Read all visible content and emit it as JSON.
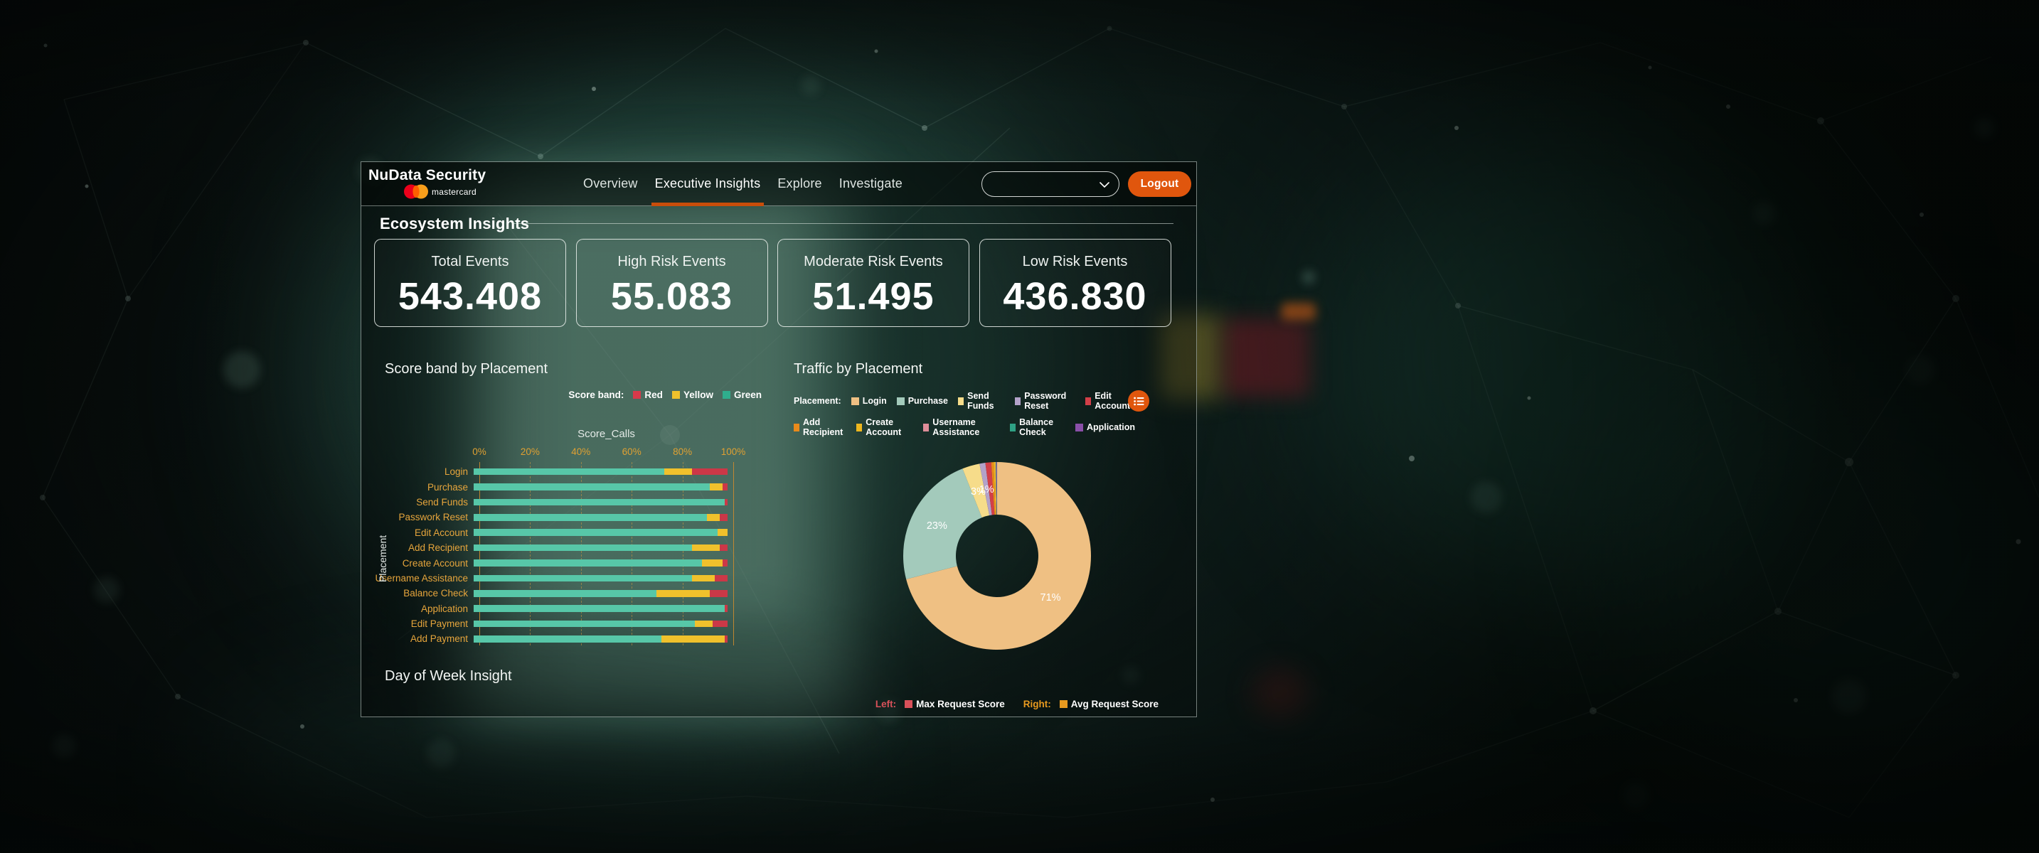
{
  "header": {
    "brand": {
      "title": "NuData Security",
      "logo_text": "mastercard"
    },
    "nav_items": [
      {
        "label": "Overview",
        "active": false
      },
      {
        "label": "Executive Insights",
        "active": true
      },
      {
        "label": "Explore",
        "active": false
      },
      {
        "label": "Investigate",
        "active": false
      }
    ],
    "account_dropdown_value": "",
    "logout_label": "Logout"
  },
  "page": {
    "section_title": "Ecosystem Insights"
  },
  "kpis": [
    {
      "label": "Total Events",
      "value": "543.408"
    },
    {
      "label": "High Risk Events",
      "value": "55.083"
    },
    {
      "label": "Moderate Risk Events",
      "value": "51.495"
    },
    {
      "label": "Low Risk Events",
      "value": "436.830"
    }
  ],
  "chart_data": [
    {
      "type": "bar",
      "title": "Score band by Placement",
      "orientation": "horizontal",
      "stacked": true,
      "legend_title": "Score band:",
      "legend": [
        {
          "label": "Red",
          "color": "#d6394a"
        },
        {
          "label": "Yellow",
          "color": "#eec12c"
        },
        {
          "label": "Green",
          "color": "#2fae8d"
        }
      ],
      "xlabel": "Score_Calls",
      "ylabel": "Placement",
      "x_ticks": [
        "0%",
        "20%",
        "40%",
        "60%",
        "80%",
        "100%"
      ],
      "xlim": [
        0,
        100
      ],
      "categories": [
        "Login",
        "Purchase",
        "Send Funds",
        "Passwork Reset",
        "Edit Account",
        "Add Recipient",
        "Create Account",
        "Username Assistance",
        "Balance Check",
        "Application",
        "Edit Payment",
        "Add Payment"
      ],
      "series": [
        {
          "name": "Green",
          "color": "#57c7a8",
          "values": [
            75,
            93,
            99,
            92,
            96,
            86,
            90,
            86,
            72,
            99,
            87,
            74
          ]
        },
        {
          "name": "Yellow",
          "color": "#f0c12c",
          "values": [
            11,
            5,
            0,
            5,
            4,
            11,
            8,
            9,
            21,
            0,
            7,
            25
          ]
        },
        {
          "name": "Red",
          "color": "#cb3847",
          "values": [
            14,
            2,
            1,
            3,
            0,
            3,
            2,
            5,
            7,
            1,
            6,
            1
          ]
        }
      ]
    },
    {
      "type": "pie",
      "title": "Traffic by Placement",
      "donut": true,
      "legend_title": "Placement:",
      "slices": [
        {
          "label": "Login",
          "value": 71,
          "display": "71%",
          "color": "#efc083"
        },
        {
          "label": "Purchase",
          "value": 23,
          "display": "23%",
          "color": "#a3cabb"
        },
        {
          "label": "Send Funds",
          "value": 3,
          "display": "3%",
          "color": "#f6dc8a"
        },
        {
          "label": "Password Reset",
          "value": 1,
          "display": "1%",
          "color": "#b3a2c9"
        },
        {
          "label": "Edit Account",
          "value": 1,
          "display": "",
          "color": "#d23f48"
        },
        {
          "label": "Add Recipient",
          "value": 0.4,
          "display": "",
          "color": "#e98a1b"
        },
        {
          "label": "Create Account",
          "value": 0.3,
          "display": "",
          "color": "#edb71e"
        },
        {
          "label": "Username Assistance",
          "value": 0.1,
          "display": "",
          "color": "#de8d99"
        },
        {
          "label": "Balance Check",
          "value": 0.1,
          "display": "",
          "color": "#2fa184"
        },
        {
          "label": "Application",
          "value": 0.1,
          "display": "",
          "color": "#8a4fa8"
        }
      ],
      "legend_rows": [
        [
          0,
          1,
          2,
          3,
          4
        ],
        [
          5,
          6,
          7,
          8,
          9
        ]
      ]
    }
  ],
  "day_of_week": {
    "title": "Day of Week Insight",
    "legend": [
      {
        "prefix": "Left:",
        "label": "Max Request Score",
        "color": "#d8515a"
      },
      {
        "prefix": "Right:",
        "label": "Avg Request Score",
        "color": "#e89a1f"
      }
    ]
  },
  "colors": {
    "accent": "#e0560d",
    "nav_underline": "#c94d0a",
    "tick_label": "#dfa032",
    "category_label": "#e6a53c"
  }
}
